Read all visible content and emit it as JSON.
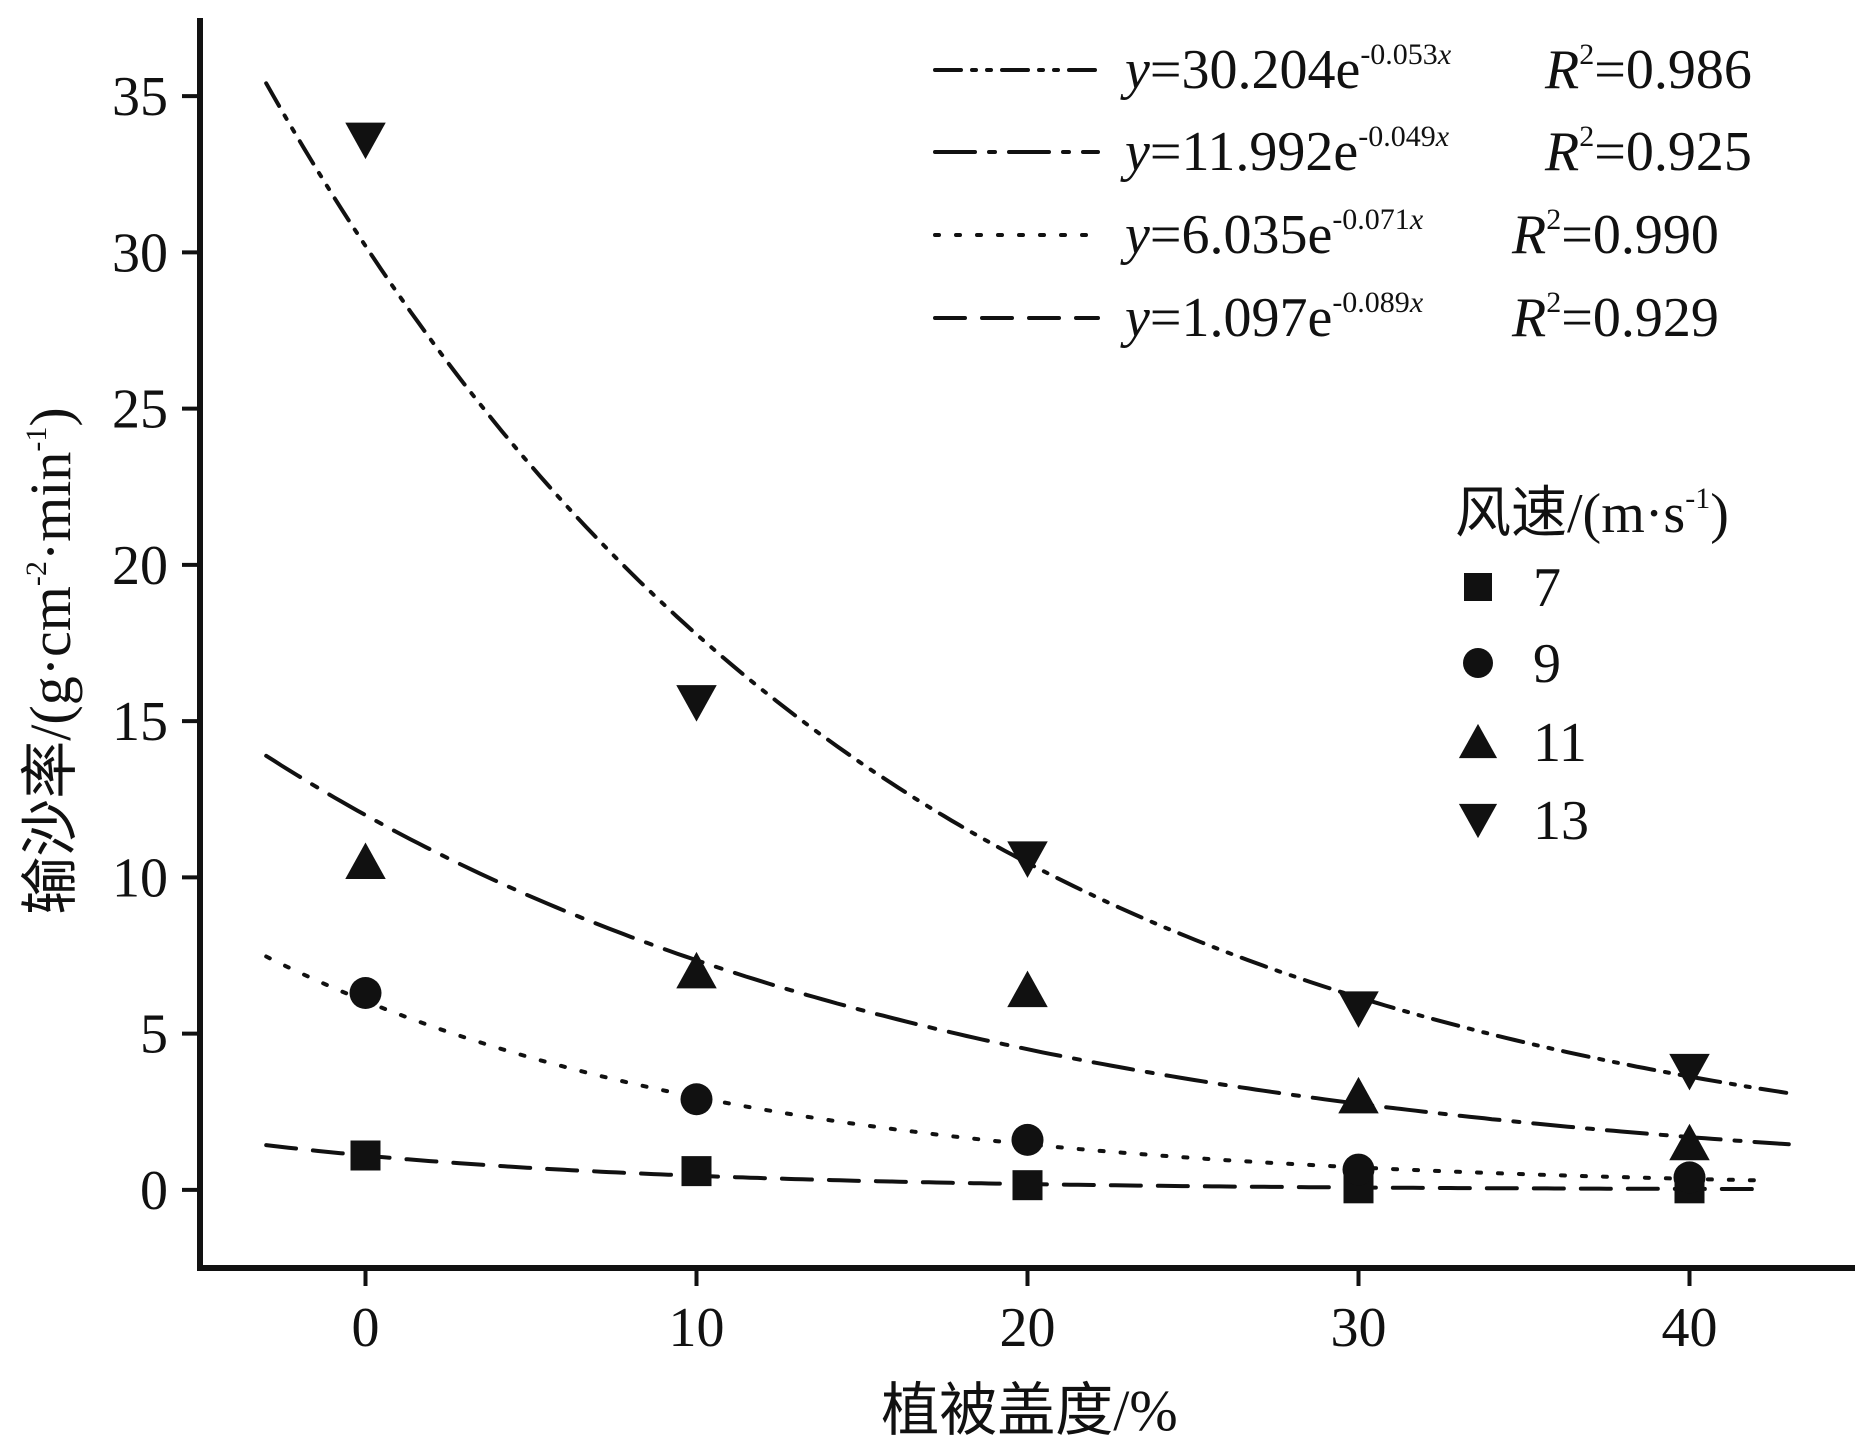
{
  "chart_data": {
    "type": "scatter",
    "xlabel": "植被盖度/%",
    "ylabel": {
      "main": "输沙率/(g·cm",
      "exp1": "-2",
      "mid": "·min",
      "exp2": "-1",
      "end": ")"
    },
    "xlim": [
      -5,
      45
    ],
    "ylim": [
      -2.5,
      37.5
    ],
    "x_ticks": [
      0,
      10,
      20,
      30,
      40
    ],
    "y_ticks": [
      0,
      5,
      10,
      15,
      20,
      25,
      30,
      35
    ],
    "legend_title": {
      "main": "风速/(m·s",
      "exp": "-1",
      "end": ")"
    },
    "series": [
      {
        "name": "7",
        "marker": "square",
        "x": [
          0,
          10,
          20,
          30,
          40
        ],
        "y": [
          1.1,
          0.6,
          0.15,
          0.05,
          0.05
        ]
      },
      {
        "name": "9",
        "marker": "circle",
        "x": [
          0,
          10,
          20,
          30,
          40
        ],
        "y": [
          6.3,
          2.9,
          1.6,
          0.65,
          0.4
        ]
      },
      {
        "name": "11",
        "marker": "triangle-up",
        "x": [
          0,
          10,
          20,
          30,
          40
        ],
        "y": [
          10.5,
          7.0,
          6.4,
          3.0,
          1.5
        ]
      },
      {
        "name": "13",
        "marker": "triangle-down",
        "x": [
          0,
          10,
          20,
          30,
          40
        ],
        "y": [
          33.6,
          15.6,
          10.6,
          5.8,
          3.8
        ]
      }
    ],
    "fits": [
      {
        "a": 30.204,
        "b": -0.053,
        "x_range": [
          -3,
          43
        ],
        "dash": "dashdotdot",
        "coef": "30.204",
        "rate": "-0.053",
        "r2": "0.986"
      },
      {
        "a": 11.992,
        "b": -0.049,
        "x_range": [
          -3,
          43
        ],
        "dash": "longdashdot",
        "coef": "11.992",
        "rate": "-0.049",
        "r2": "0.925"
      },
      {
        "a": 6.035,
        "b": -0.071,
        "x_range": [
          -3,
          42
        ],
        "dash": "dotted",
        "coef": "6.035",
        "rate": "-0.071",
        "r2": "0.990"
      },
      {
        "a": 1.097,
        "b": -0.089,
        "x_range": [
          -3,
          42
        ],
        "dash": "dashed",
        "coef": "1.097",
        "rate": "-0.089",
        "r2": "0.929"
      }
    ],
    "fit_label_parts": {
      "y": "y",
      "eq_prefix": "=",
      "e": "e",
      "x": "x",
      "R": "R",
      "two": "2",
      "eq": "="
    },
    "colors": {
      "ink": "#111111",
      "background": "#ffffff"
    }
  }
}
